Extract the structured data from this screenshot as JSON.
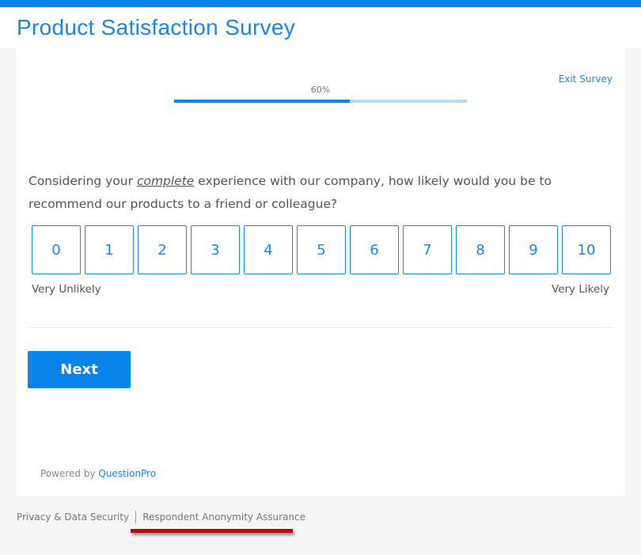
{
  "header": {
    "title": "Product Satisfaction Survey"
  },
  "colors": {
    "accent": "#0a84e8",
    "progress_track": "#b7daf7",
    "annotation": "#cc0000"
  },
  "progress": {
    "label": "60%",
    "value": 60
  },
  "exit_label": "Exit Survey",
  "question": {
    "before": "Considering your ",
    "emphasis": "complete",
    "after": " experience with our company, how likely would you be to recommend our products to a friend or colleague?"
  },
  "scale": {
    "options": [
      "0",
      "1",
      "2",
      "3",
      "4",
      "5",
      "6",
      "7",
      "8",
      "9",
      "10"
    ],
    "low_label": "Very Unlikely",
    "high_label": "Very Likely"
  },
  "next_label": "Next",
  "powered": {
    "prefix": "Powered by ",
    "brand": "QuestionPro"
  },
  "footer": {
    "privacy": "Privacy & Data Security",
    "anonymity": "Respondent Anonymity Assurance"
  }
}
